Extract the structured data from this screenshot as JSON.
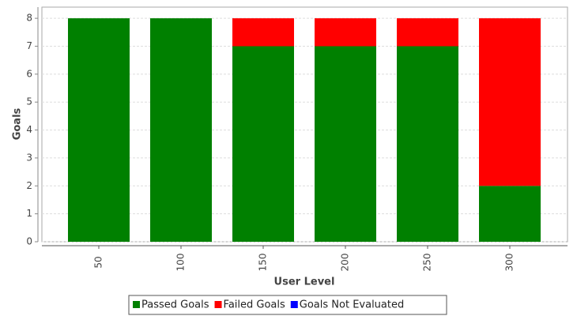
{
  "chart_data": {
    "type": "stacked-bar",
    "x_label": "User Level",
    "y_label": "Goals",
    "categories": [
      "50",
      "100",
      "150",
      "200",
      "250",
      "300"
    ],
    "series": [
      {
        "name": "Passed Goals",
        "color": "#008000",
        "values": [
          8,
          8,
          7,
          7,
          7,
          2
        ]
      },
      {
        "name": "Failed Goals",
        "color": "#ff0000",
        "values": [
          0,
          0,
          1,
          1,
          1,
          6
        ]
      },
      {
        "name": "Goals Not Evaluated",
        "color": "#0000ff",
        "values": [
          0,
          0,
          0,
          0,
          0,
          0
        ]
      }
    ],
    "ylim": [
      0,
      8.4
    ],
    "yticks": [
      0,
      1,
      2,
      3,
      4,
      5,
      6,
      7,
      8
    ],
    "grid": true
  }
}
